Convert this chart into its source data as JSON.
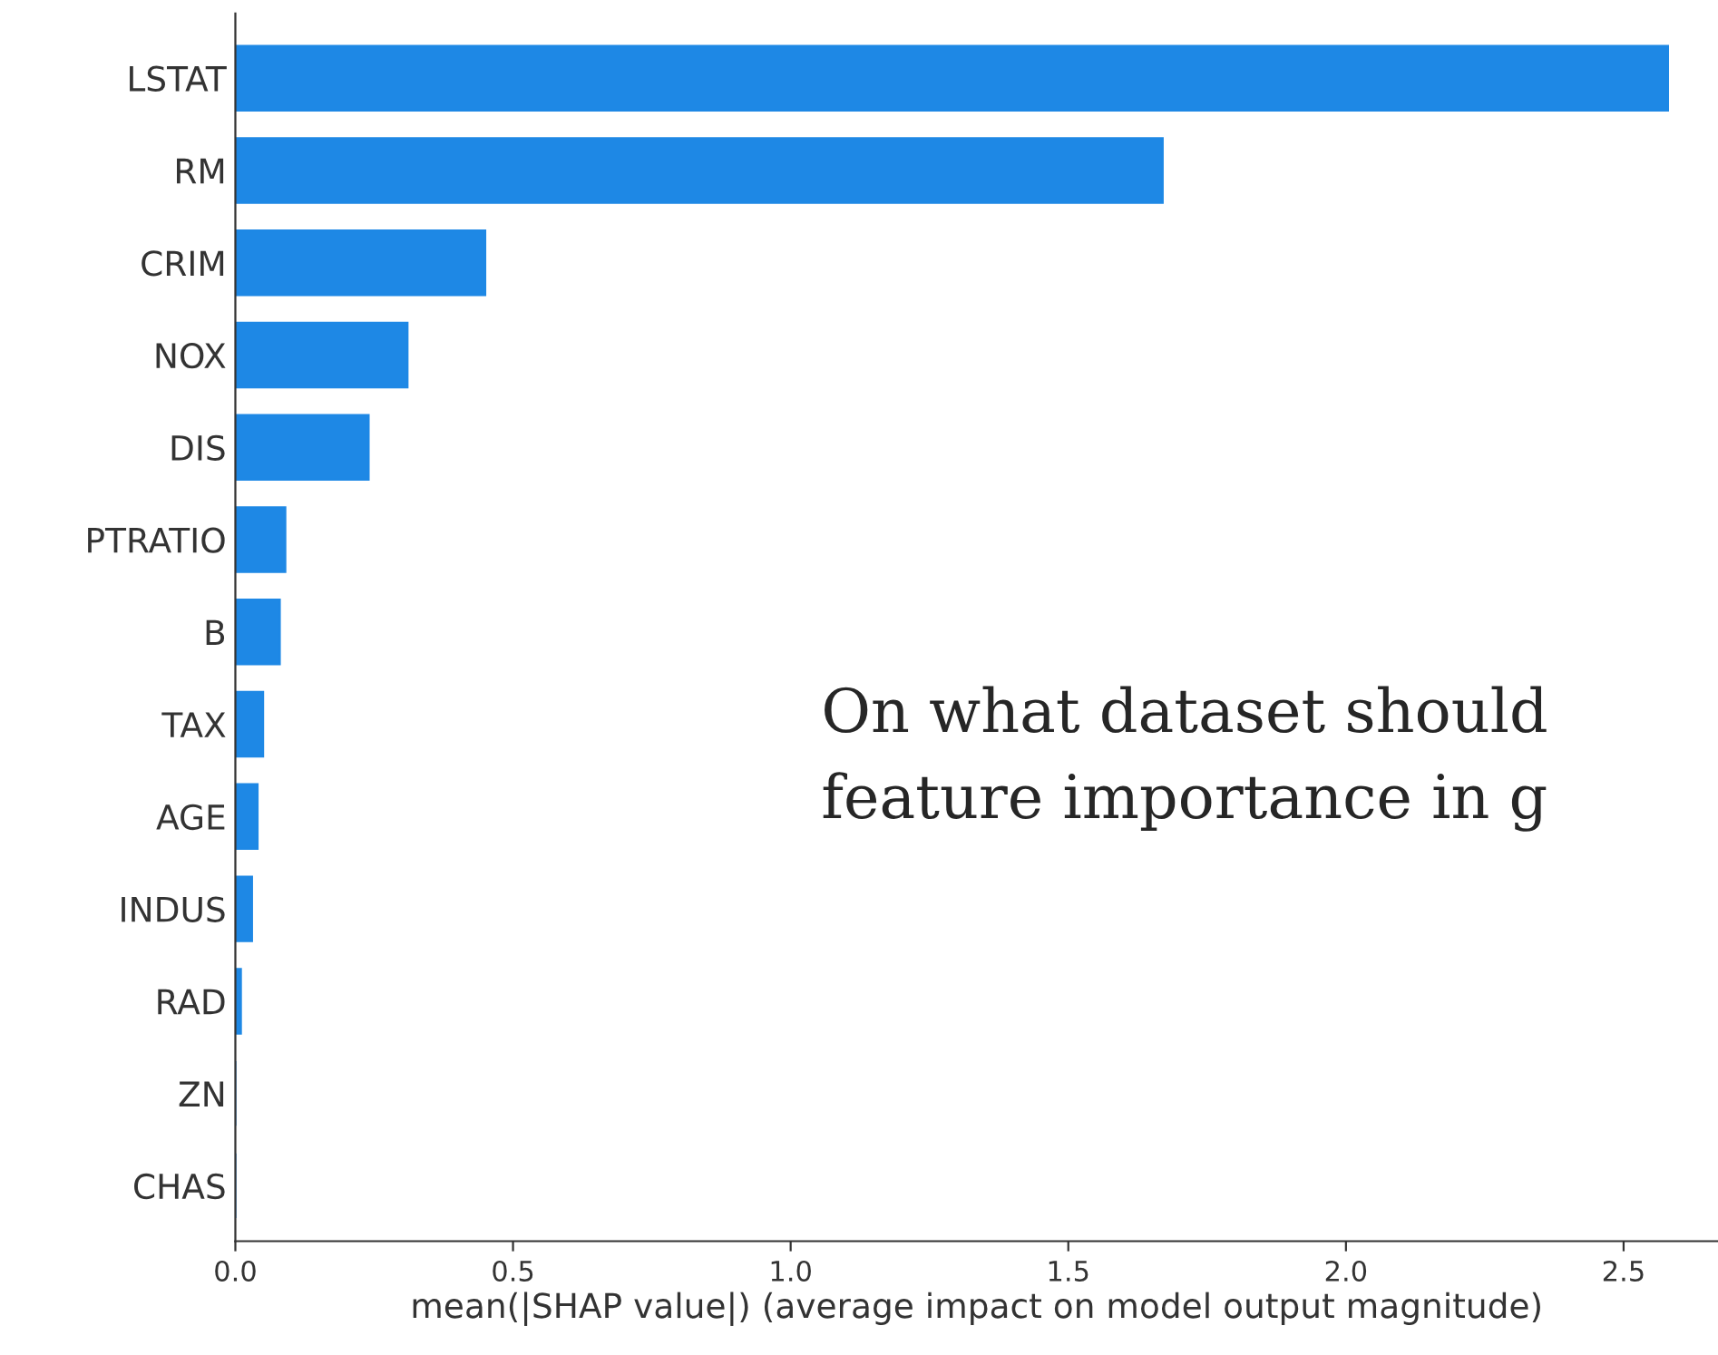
{
  "chart_data": {
    "type": "bar",
    "orientation": "horizontal",
    "categories": [
      "LSTAT",
      "RM",
      "CRIM",
      "NOX",
      "DIS",
      "PTRATIO",
      "B",
      "TAX",
      "AGE",
      "INDUS",
      "RAD",
      "ZN",
      "CHAS"
    ],
    "values": [
      2.58,
      1.67,
      0.45,
      0.31,
      0.24,
      0.09,
      0.08,
      0.05,
      0.04,
      0.03,
      0.01,
      0,
      0
    ],
    "color": "#1e88e5",
    "xlabel": "mean(|SHAP value|) (average impact on model output magnitude)",
    "xlim": [
      0,
      2.67
    ],
    "xticks": [
      {
        "value": 0,
        "label": "0.0"
      },
      {
        "value": 0.5,
        "label": "0.5"
      },
      {
        "value": 1,
        "label": "1.0"
      },
      {
        "value": 1.5,
        "label": "1.5"
      },
      {
        "value": 2,
        "label": "2.0"
      },
      {
        "value": 2.5,
        "label": "2.5"
      }
    ],
    "grid": false,
    "legend": false,
    "annotations": [
      "On what dataset should\nfeature importance in g"
    ]
  }
}
